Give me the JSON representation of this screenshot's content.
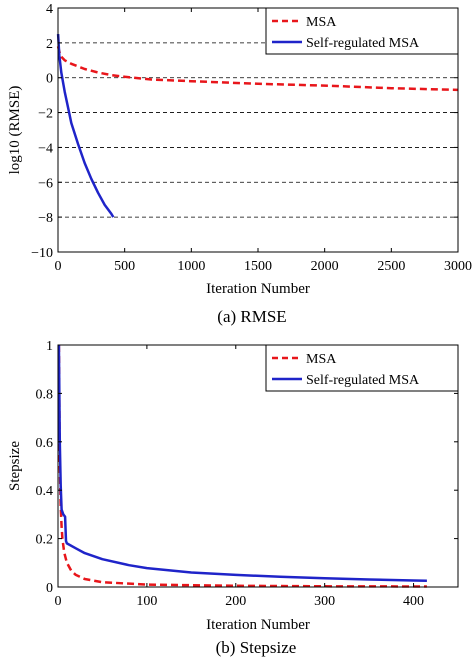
{
  "chart_data": [
    {
      "type": "line",
      "caption": "(a) RMSE",
      "xlabel": "Iteration Number",
      "ylabel": "log10 (RMSE)",
      "xlim": [
        0,
        3000
      ],
      "ylim": [
        -10,
        4
      ],
      "xticks": [
        0,
        500,
        1000,
        1500,
        2000,
        2500,
        3000
      ],
      "yticks": [
        4,
        2,
        0,
        -2,
        -4,
        -6,
        -8,
        -10
      ],
      "grid": "horizontal dashed",
      "legend_position": "top-right",
      "series": [
        {
          "name": "MSA",
          "color": "#e8161b",
          "dash": "dashed",
          "x": [
            1,
            10,
            25,
            50,
            100,
            200,
            300,
            400,
            500,
            700,
            1000,
            1500,
            2000,
            2500,
            3000
          ],
          "y": [
            1.8,
            1.5,
            1.2,
            1.0,
            0.8,
            0.5,
            0.3,
            0.15,
            0.05,
            -0.1,
            -0.2,
            -0.35,
            -0.45,
            -0.6,
            -0.7
          ]
        },
        {
          "name": "Self-regulated MSA",
          "color": "#1f24c9",
          "dash": "solid",
          "x": [
            1,
            10,
            25,
            50,
            75,
            100,
            150,
            200,
            250,
            300,
            350,
            400,
            415
          ],
          "y": [
            2.5,
            1.3,
            0.3,
            -0.8,
            -1.7,
            -2.6,
            -3.8,
            -4.9,
            -5.8,
            -6.6,
            -7.3,
            -7.8,
            -8.0
          ]
        }
      ]
    },
    {
      "type": "line",
      "caption": "(b) Stepsize",
      "xlabel": "Iteration Number",
      "ylabel": "Stepsize",
      "xlim": [
        0,
        450
      ],
      "ylim": [
        0,
        1
      ],
      "xticks": [
        0,
        100,
        200,
        300,
        400
      ],
      "yticks": [
        1,
        0.8,
        0.6,
        0.4,
        0.2,
        0
      ],
      "grid": "none",
      "legend_position": "top-right",
      "series": [
        {
          "name": "MSA",
          "color": "#e8161b",
          "dash": "dashed",
          "x": [
            1,
            2,
            3,
            4,
            5,
            7,
            10,
            15,
            20,
            30,
            50,
            100,
            200,
            300,
            415
          ],
          "y": [
            1.0,
            0.5,
            0.333,
            0.25,
            0.2,
            0.143,
            0.1,
            0.067,
            0.05,
            0.033,
            0.02,
            0.01,
            0.005,
            0.003,
            0.002
          ]
        },
        {
          "name": "Self-regulated MSA",
          "color": "#1f24c9",
          "dash": "solid",
          "x": [
            1,
            2,
            3,
            4,
            6,
            8,
            9,
            10,
            20,
            30,
            50,
            80,
            100,
            150,
            200,
            250,
            300,
            350,
            400,
            415
          ],
          "y": [
            1.0,
            0.6,
            0.42,
            0.32,
            0.3,
            0.29,
            0.19,
            0.18,
            0.16,
            0.14,
            0.115,
            0.09,
            0.078,
            0.06,
            0.05,
            0.042,
            0.036,
            0.031,
            0.027,
            0.026
          ]
        }
      ]
    }
  ]
}
